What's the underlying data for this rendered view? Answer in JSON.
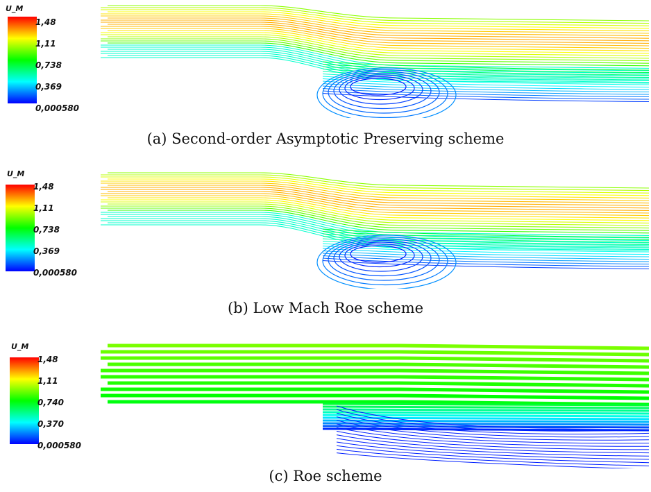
{
  "figure": {
    "panels": [
      {
        "caption": "(a) Second-order Asymptotic Preserving scheme",
        "legend": {
          "title": "U_M",
          "ticks": [
            "1,48",
            "1,11",
            "0,738",
            "0,369",
            "0,000580"
          ]
        }
      },
      {
        "caption": "(b) Low Mach Roe scheme",
        "legend": {
          "title": "U_M",
          "ticks": [
            "1,48",
            "1,11",
            "0,738",
            "0,369",
            "0,000580"
          ]
        }
      },
      {
        "caption": "(c) Roe scheme",
        "legend": {
          "title": "U_M",
          "ticks": [
            "1,48",
            "1,11",
            "0,740",
            "0,370",
            "0,000580"
          ]
        }
      }
    ],
    "colormap": [
      "#ff0000",
      "#ffff00",
      "#00ff00",
      "#00ffff",
      "#0000ff"
    ]
  }
}
